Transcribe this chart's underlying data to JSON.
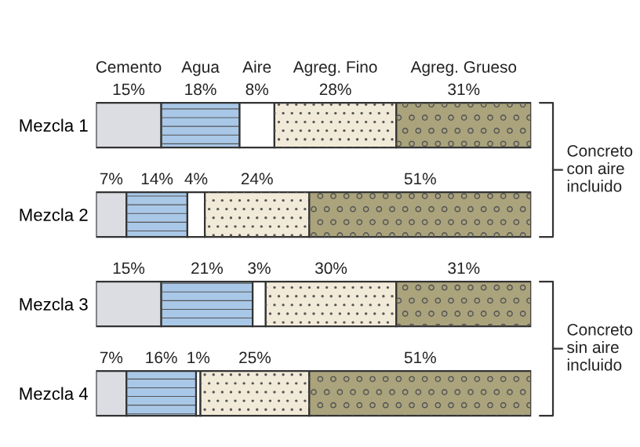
{
  "chart_data": {
    "type": "bar",
    "orientation": "horizontal",
    "stacked": true,
    "categories": [
      "Mezcla 1",
      "Mezcla 2",
      "Mezcla 3",
      "Mezcla 4"
    ],
    "series": [
      {
        "name": "Cemento",
        "color": "#dcdde3",
        "values": [
          15,
          7,
          15,
          7
        ],
        "value_labels": [
          "15%",
          "7%",
          "15%",
          "7%"
        ]
      },
      {
        "name": "Agua",
        "color": "#a9c8e8",
        "values": [
          18,
          14,
          21,
          16
        ],
        "value_labels": [
          "18%",
          "14%",
          "21%",
          "16%"
        ]
      },
      {
        "name": "Aire",
        "color": "#ffffff",
        "values": [
          8,
          4,
          3,
          1
        ],
        "value_labels": [
          "8%",
          "4%",
          "3%",
          "1%"
        ]
      },
      {
        "name": "Agreg. Fino",
        "color": "#f2ead8",
        "values": [
          28,
          24,
          30,
          25
        ],
        "value_labels": [
          "28%",
          "24%",
          "30%",
          "25%"
        ]
      },
      {
        "name": "Agreg. Grueso",
        "color": "#aaa37c",
        "values": [
          31,
          51,
          31,
          51
        ],
        "value_labels": [
          "31%",
          "51%",
          "31%",
          "51%"
        ]
      }
    ],
    "annotations": [
      "Concreto\ncon aire\nincluido",
      "Concreto\nsin aire\nincluido"
    ],
    "legend": false,
    "grid": false
  }
}
